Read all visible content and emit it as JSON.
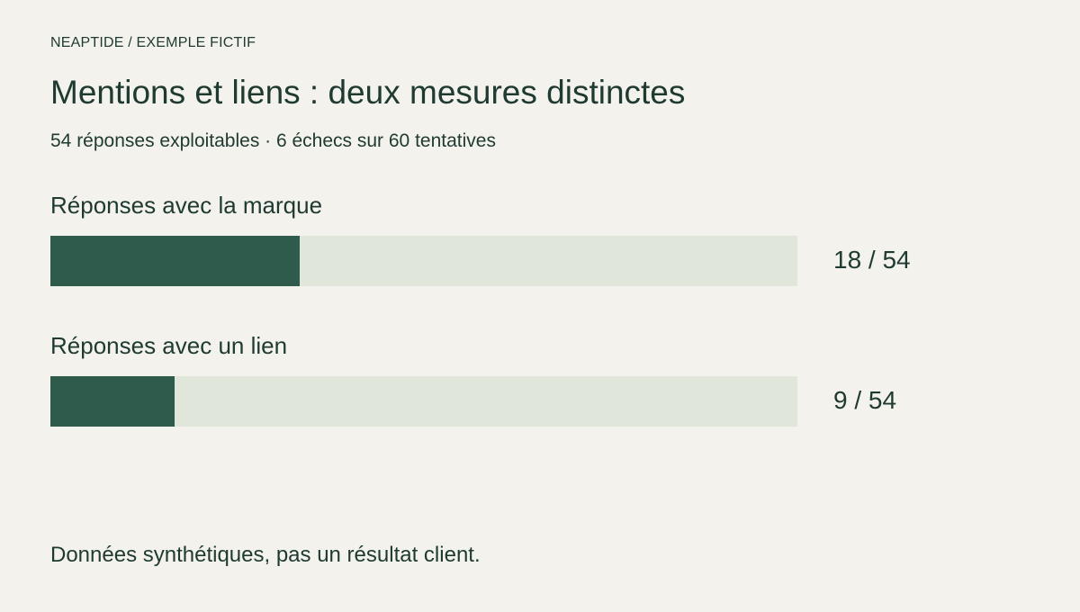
{
  "header": {
    "eyebrow": "NEAPTIDE / EXEMPLE FICTIF",
    "title": "Mentions et liens : deux mesures distinctes",
    "subtitle": "54 réponses exploitables · 6 échecs sur 60 tentatives"
  },
  "chart_data": {
    "type": "bar",
    "orientation": "horizontal",
    "categories": [
      "Réponses avec la marque",
      "Réponses avec un lien"
    ],
    "values": [
      18,
      9
    ],
    "total": 54,
    "value_labels": [
      "18 / 54",
      "9 / 54"
    ],
    "xlim": [
      0,
      54
    ],
    "grid": false,
    "colors": {
      "bar": "#2f5b4d",
      "track": "#e0e6da"
    }
  },
  "footer": {
    "note": "Données synthétiques, pas un résultat client."
  }
}
